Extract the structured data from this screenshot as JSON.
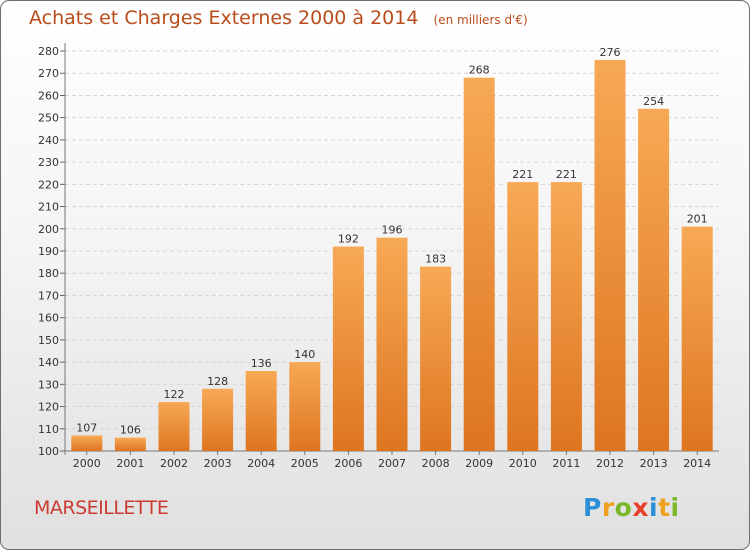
{
  "title": "Achats et Charges Externes 2000 à 2014",
  "unit": "(en milliers d'€)",
  "place": "MARSEILLETTE",
  "logo": {
    "text": "Proxiti",
    "letters": [
      {
        "ch": "P",
        "color": "#2d8fd6"
      },
      {
        "ch": "r",
        "color": "#f0a020"
      },
      {
        "ch": "o",
        "color": "#7ab829"
      },
      {
        "ch": "x",
        "color": "#e8412b"
      },
      {
        "ch": "i",
        "color": "#2d8fd6"
      },
      {
        "ch": "t",
        "color": "#f0a020"
      },
      {
        "ch": "i",
        "color": "#7ab829"
      }
    ]
  },
  "colors": {
    "bar_light": "#f7a955",
    "bar_dark": "#de7520",
    "grid": "#d6d6d6"
  },
  "chart_data": {
    "type": "bar",
    "title": "Achats et Charges Externes 2000 à 2014",
    "xlabel": "",
    "ylabel": "",
    "ylim": [
      100,
      280
    ],
    "yticks": [
      100,
      110,
      120,
      130,
      140,
      150,
      160,
      170,
      180,
      190,
      200,
      210,
      220,
      230,
      240,
      250,
      260,
      270,
      280
    ],
    "grid": true,
    "categories": [
      "2000",
      "2001",
      "2002",
      "2003",
      "2004",
      "2005",
      "2006",
      "2007",
      "2008",
      "2009",
      "2010",
      "2011",
      "2012",
      "2013",
      "2014"
    ],
    "values": [
      107,
      106,
      122,
      128,
      136,
      140,
      192,
      196,
      183,
      268,
      221,
      221,
      276,
      254,
      201
    ]
  }
}
